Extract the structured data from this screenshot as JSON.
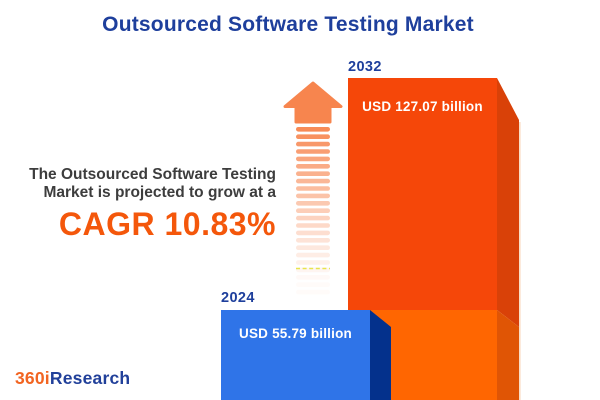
{
  "title": "Outsourced Software Testing Market",
  "intro": {
    "line1": "The Outsourced Software Testing",
    "line2": "Market is projected to grow at a",
    "cagr": "CAGR 10.83%"
  },
  "bars": {
    "b2024": {
      "year": "2024",
      "label": "USD 55.79 billion"
    },
    "b2032": {
      "year": "2032",
      "label": "USD 127.07 billion"
    }
  },
  "logo": {
    "part1": "360i",
    "part2": "Research"
  },
  "colors": {
    "title_blue": "#1E3F9C",
    "body_text": "#3D3D3D",
    "accent_orange": "#F4570B",
    "arrow": "#F7854E",
    "arrow_dash_yellow": "#E6E33C",
    "bar_2024_front": "#2F74E8",
    "bar_2024_side": "#04318C",
    "bar_2032_front_top": "#F54709",
    "bar_2032_side_top": "#D94108",
    "bar_2032_front_bottom": "#FF6601",
    "bar_2032_side_bottom": "#E05505",
    "edge_highlight": "#F8D5B8",
    "logo_orange": "#F26522",
    "logo_blue": "#21409A"
  },
  "chart_data": {
    "type": "bar",
    "categories": [
      "2024",
      "2032"
    ],
    "values": [
      55.79,
      127.07
    ],
    "unit": "USD billion",
    "value_labels": [
      "USD 55.79 billion",
      "USD 127.07 billion"
    ],
    "title": "Outsourced Software Testing Market",
    "annotation": "CAGR 10.83%",
    "legend": "none",
    "bar_colors": [
      "#2F74E8",
      "#F54709"
    ],
    "style": "3d-infographic, bars anchored to bottom edge, not to numeric scale"
  }
}
